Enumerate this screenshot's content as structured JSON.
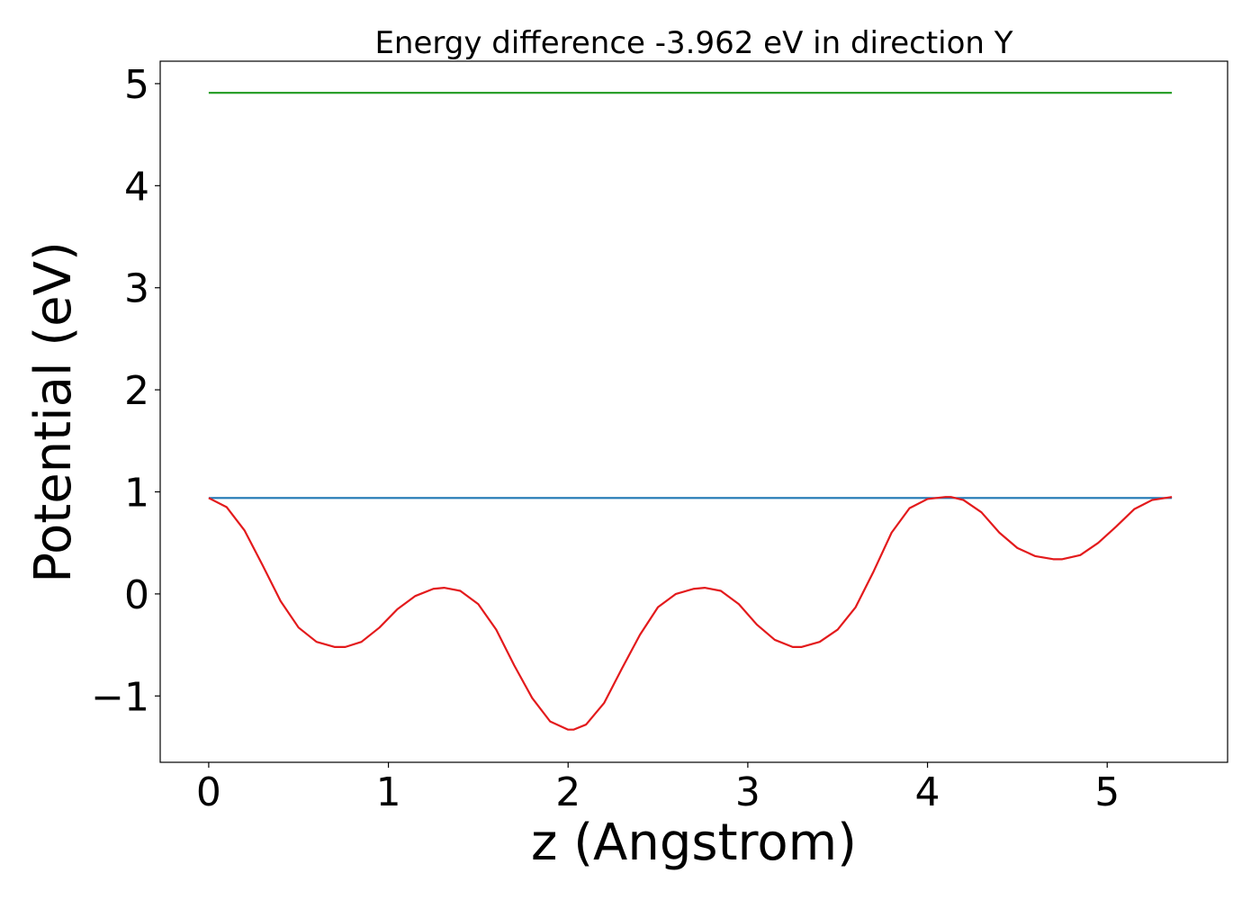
{
  "chart_data": {
    "type": "line",
    "title": "Energy difference -3.962 eV in direction Y",
    "xlabel": "z (Angstrom)",
    "ylabel": "Potential (eV)",
    "xlim": [
      -0.27,
      5.67
    ],
    "ylim": [
      -1.65,
      5.22
    ],
    "xticks": [
      0,
      1,
      2,
      3,
      4,
      5
    ],
    "yticks": [
      -1,
      0,
      1,
      2,
      3,
      4,
      5
    ],
    "ytick_labels": [
      "−1",
      "0",
      "1",
      "2",
      "3",
      "4",
      "5"
    ],
    "grid": false,
    "legend": "none",
    "series": [
      {
        "color": "#2ca02c",
        "x": [
          0,
          5.36
        ],
        "y": [
          4.91,
          4.91
        ]
      },
      {
        "color": "#1f77b4",
        "x": [
          0,
          5.36
        ],
        "y": [
          0.94,
          0.94
        ]
      },
      {
        "color": "#e31a1c",
        "x": [
          0,
          0.1,
          0.2,
          0.3,
          0.4,
          0.5,
          0.6,
          0.7,
          0.76,
          0.85,
          0.95,
          1.05,
          1.15,
          1.25,
          1.31,
          1.4,
          1.5,
          1.6,
          1.7,
          1.8,
          1.9,
          2.0,
          2.03,
          2.1,
          2.2,
          2.3,
          2.4,
          2.5,
          2.6,
          2.7,
          2.76,
          2.85,
          2.95,
          3.05,
          3.15,
          3.25,
          3.3,
          3.4,
          3.5,
          3.6,
          3.7,
          3.8,
          3.9,
          4.0,
          4.1,
          4.13,
          4.2,
          4.3,
          4.4,
          4.5,
          4.6,
          4.7,
          4.75,
          4.85,
          4.95,
          5.05,
          5.15,
          5.25,
          5.36
        ],
        "y": [
          0.94,
          0.85,
          0.62,
          0.28,
          -0.07,
          -0.33,
          -0.47,
          -0.52,
          -0.52,
          -0.47,
          -0.33,
          -0.15,
          -0.02,
          0.05,
          0.06,
          0.03,
          -0.1,
          -0.35,
          -0.7,
          -1.02,
          -1.25,
          -1.33,
          -1.33,
          -1.28,
          -1.07,
          -0.73,
          -0.4,
          -0.13,
          0.0,
          0.05,
          0.06,
          0.03,
          -0.1,
          -0.3,
          -0.45,
          -0.52,
          -0.52,
          -0.47,
          -0.35,
          -0.13,
          0.22,
          0.6,
          0.84,
          0.93,
          0.95,
          0.95,
          0.92,
          0.8,
          0.6,
          0.45,
          0.37,
          0.34,
          0.34,
          0.38,
          0.5,
          0.66,
          0.83,
          0.92,
          0.95
        ]
      }
    ]
  }
}
